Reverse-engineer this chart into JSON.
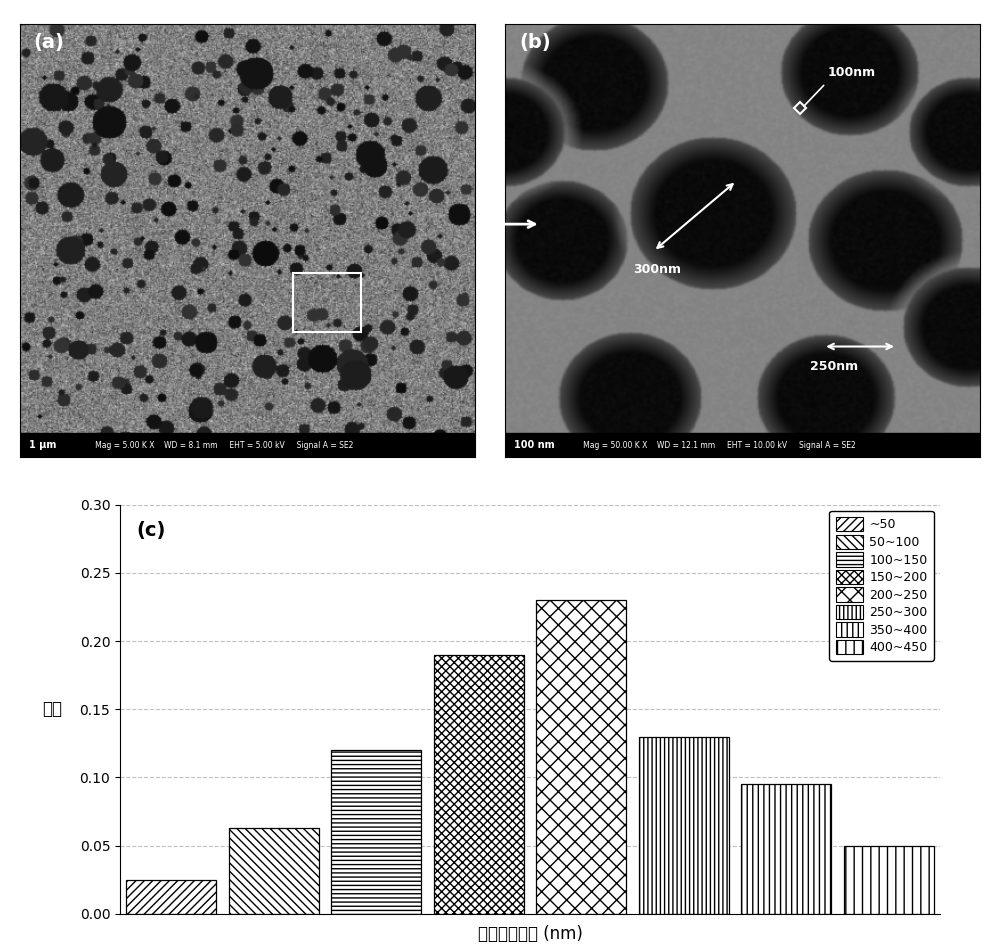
{
  "bar_values": [
    0.025,
    0.063,
    0.12,
    0.19,
    0.23,
    0.13,
    0.095,
    0.05
  ],
  "bar_labels": [
    "~50",
    "50~100",
    "100~150",
    "150~200",
    "200~250",
    "250~300",
    "350~400",
    "400~450"
  ],
  "xlabel": "纳米孔径分布 (nm)",
  "ylabel": "频率",
  "panel_c_label": "(c)",
  "ylim": [
    0.0,
    0.3
  ],
  "yticks": [
    0.0,
    0.05,
    0.1,
    0.15,
    0.2,
    0.25,
    0.3
  ],
  "bar_color": "white",
  "bar_edgecolor": "black",
  "legend_labels": [
    "~50",
    "50~100",
    "100~150",
    "150~200",
    "200~250",
    "250~300",
    "350~400",
    "400~450"
  ],
  "img_a_info": {
    "scale": "1 μm",
    "mag": "Mag = 5.00 K X",
    "wd": "WD = 8.1 mm",
    "eht": "EHT = 5.00 kV",
    "sig": "Signal A = SE2"
  },
  "img_b_info": {
    "scale": "100 nm",
    "mag": "Mag = 50.00 K X",
    "wd": "WD = 12.1 mm",
    "eht": "EHT = 10.00 kV",
    "sig": "Signal A = SE2"
  }
}
